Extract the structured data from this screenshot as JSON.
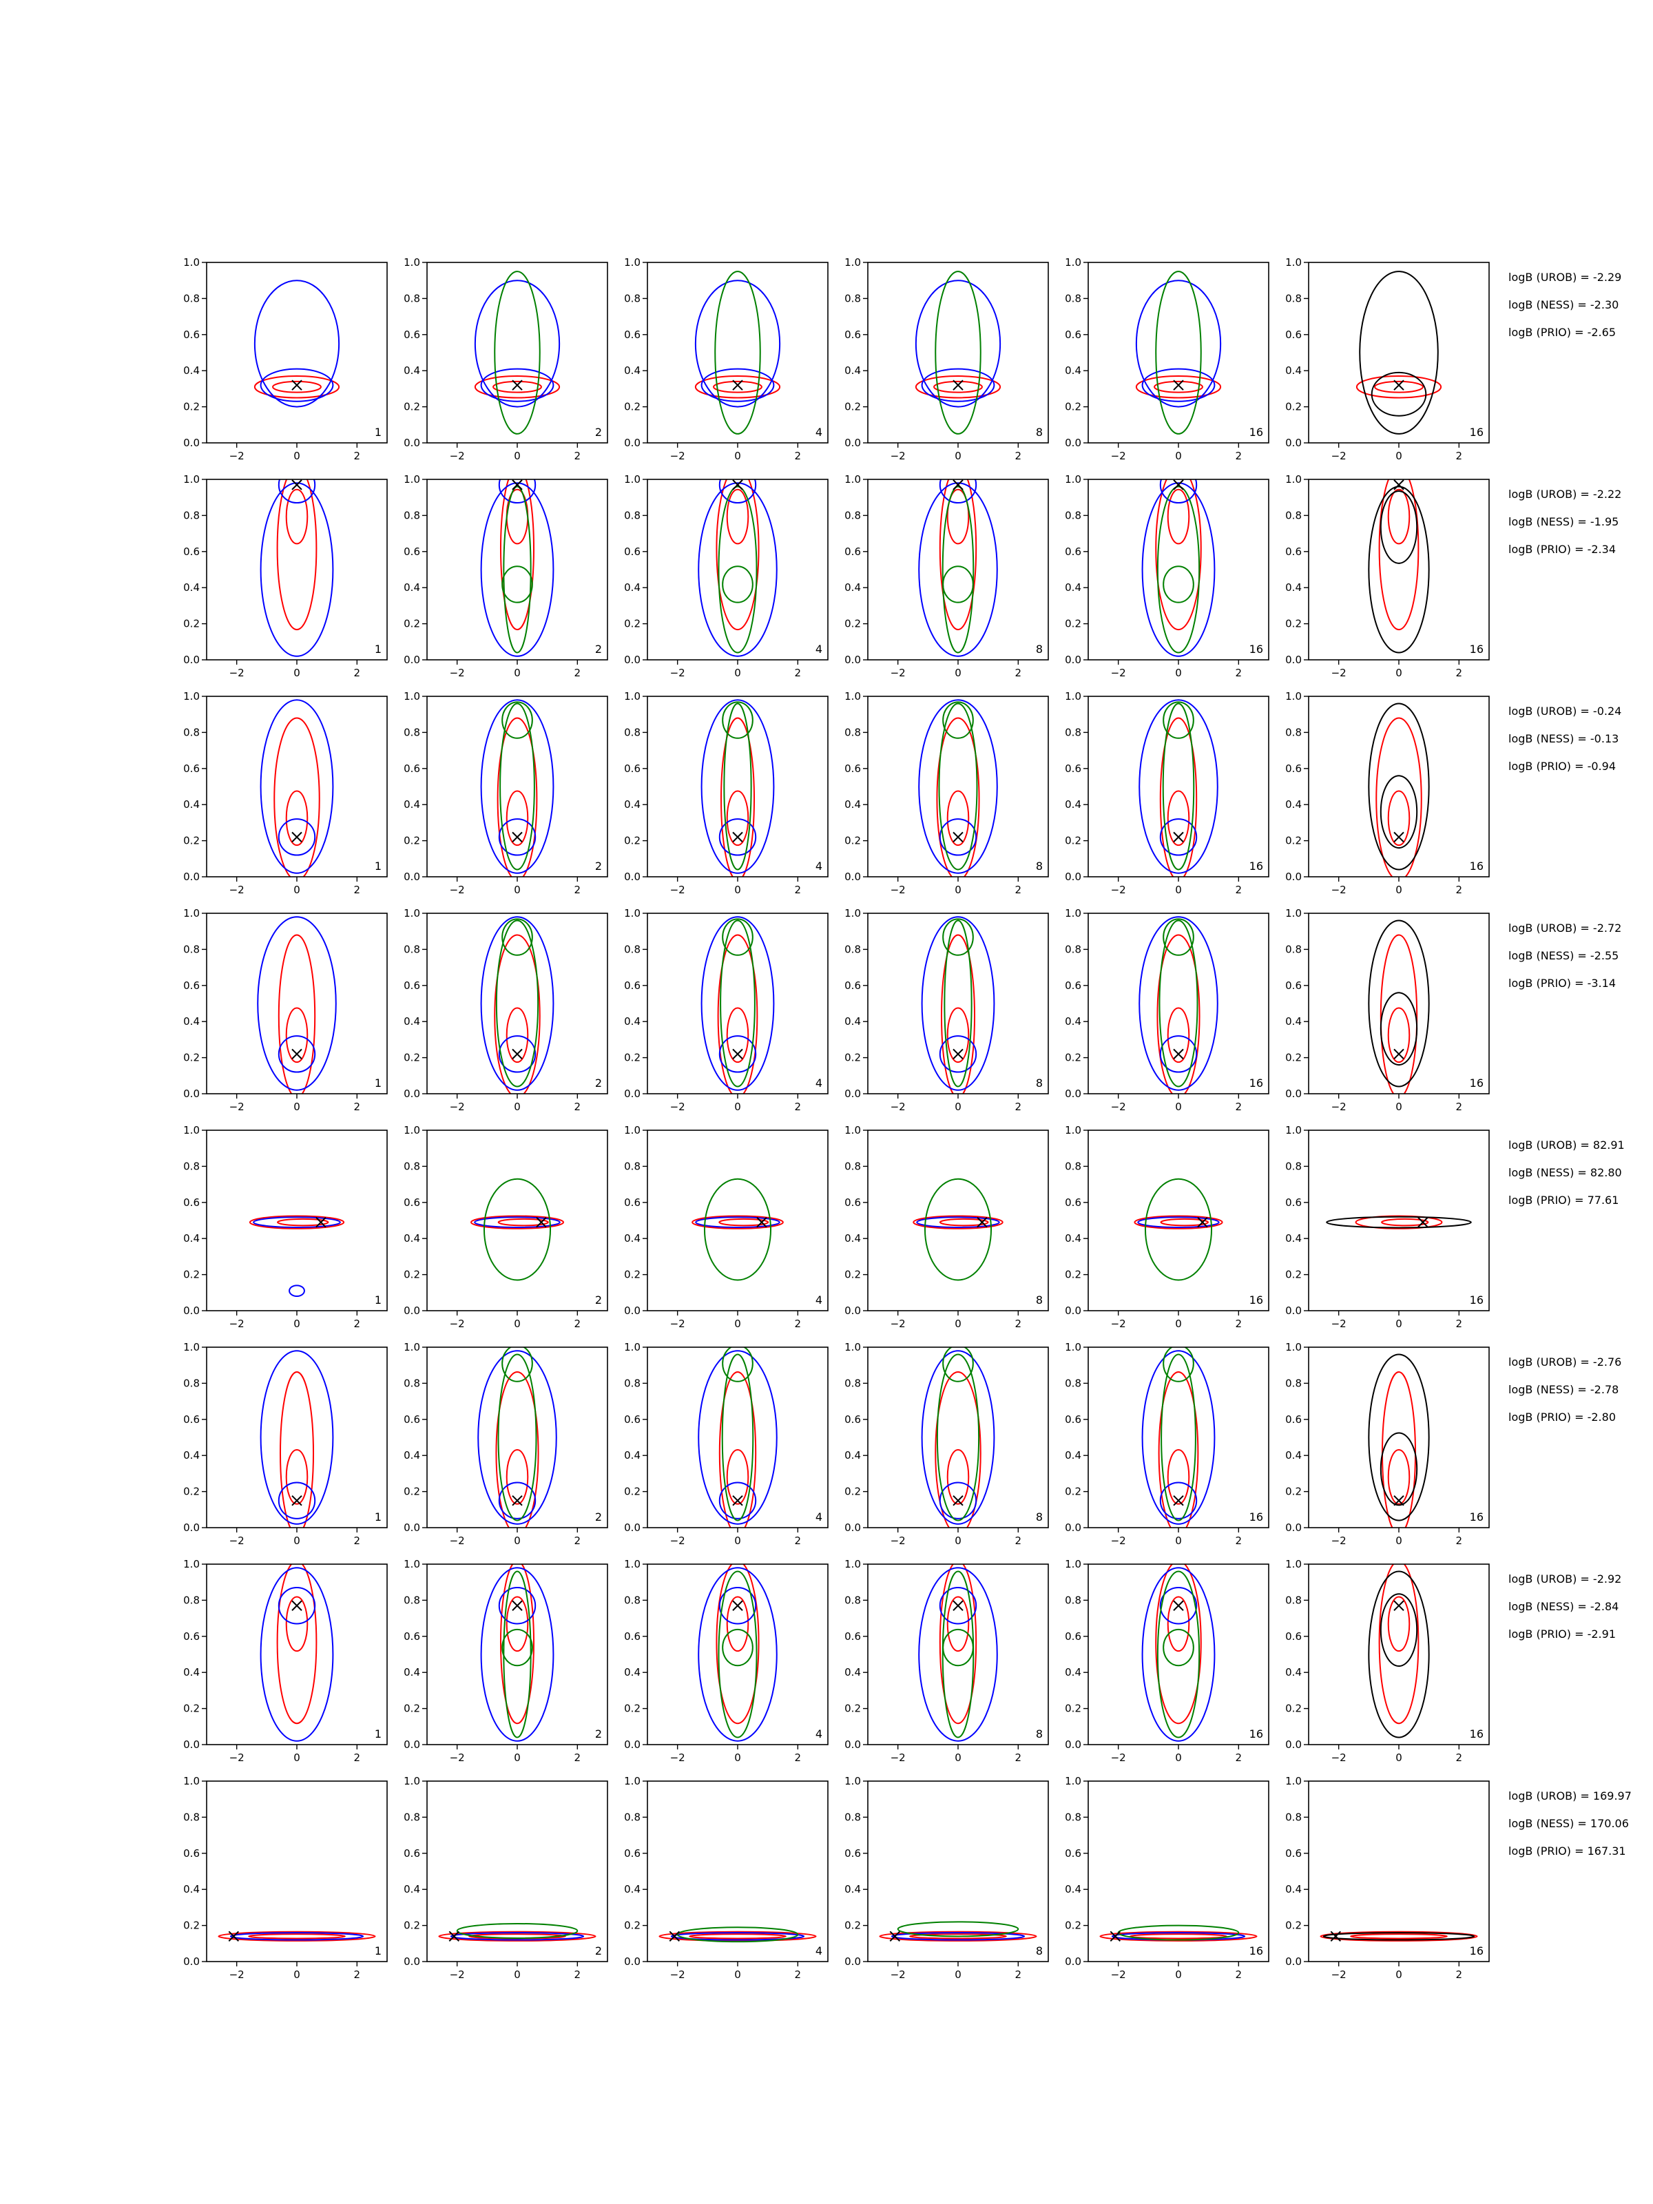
{
  "chart_data": {
    "type": "contour",
    "layout": "8 rows x 6 panels",
    "x_ticks": [
      "−2",
      "0",
      "2"
    ],
    "y_ticks": [
      "0.0",
      "0.2",
      "0.4",
      "0.6",
      "0.8",
      "1.0"
    ],
    "xlim": [
      -3,
      3
    ],
    "ylim": [
      0,
      1
    ],
    "panel_labels": [
      "1",
      "2",
      "4",
      "8",
      "16",
      "16"
    ],
    "grid": false,
    "legend": "none",
    "colors": {
      "urob": "#0000ff",
      "ness": "#ff0000",
      "prio": "#008000",
      "exact": "#000000",
      "marker": "#000000"
    },
    "rows": [
      {
        "marker": [
          0,
          0.32
        ],
        "spread": "narrow",
        "logb": [
          "logB (UROB) = -2.29",
          "logB (NESS) = -2.30",
          "logB (PRIO) = -2.65"
        ]
      },
      {
        "marker": [
          0,
          0.97
        ],
        "spread": "wide",
        "logb": [
          "logB (UROB) = -2.22",
          "logB (NESS) = -1.95",
          "logB (PRIO) = -2.34"
        ]
      },
      {
        "marker": [
          0,
          0.22
        ],
        "spread": "wide",
        "logb": [
          "logB (UROB) = -0.24",
          "logB (NESS) = -0.13",
          "logB (PRIO) = -0.94"
        ]
      },
      {
        "marker": [
          0,
          0.22
        ],
        "spread": "wide",
        "logb": [
          "logB (UROB) = -2.72",
          "logB (NESS) = -2.55",
          "logB (PRIO) = -3.14"
        ]
      },
      {
        "marker": [
          0.8,
          0.49
        ],
        "spread": "flat",
        "logb": [
          "logB (UROB) = 82.91",
          "logB (NESS) = 82.80",
          "logB (PRIO) = 77.61"
        ]
      },
      {
        "marker": [
          0,
          0.15
        ],
        "spread": "wide",
        "logb": [
          "logB (UROB) = -2.76",
          "logB (NESS) = -2.78",
          "logB (PRIO) = -2.80"
        ]
      },
      {
        "marker": [
          0,
          0.77
        ],
        "spread": "wide",
        "logb": [
          "logB (UROB) = -2.92",
          "logB (NESS) = -2.84",
          "logB (PRIO) = -2.91"
        ]
      },
      {
        "marker": [
          -2.1,
          0.14
        ],
        "spread": "thin",
        "logb": [
          "logB (UROB) = 169.97",
          "logB (NESS) = 170.06",
          "logB (PRIO) = 167.31"
        ]
      }
    ]
  }
}
